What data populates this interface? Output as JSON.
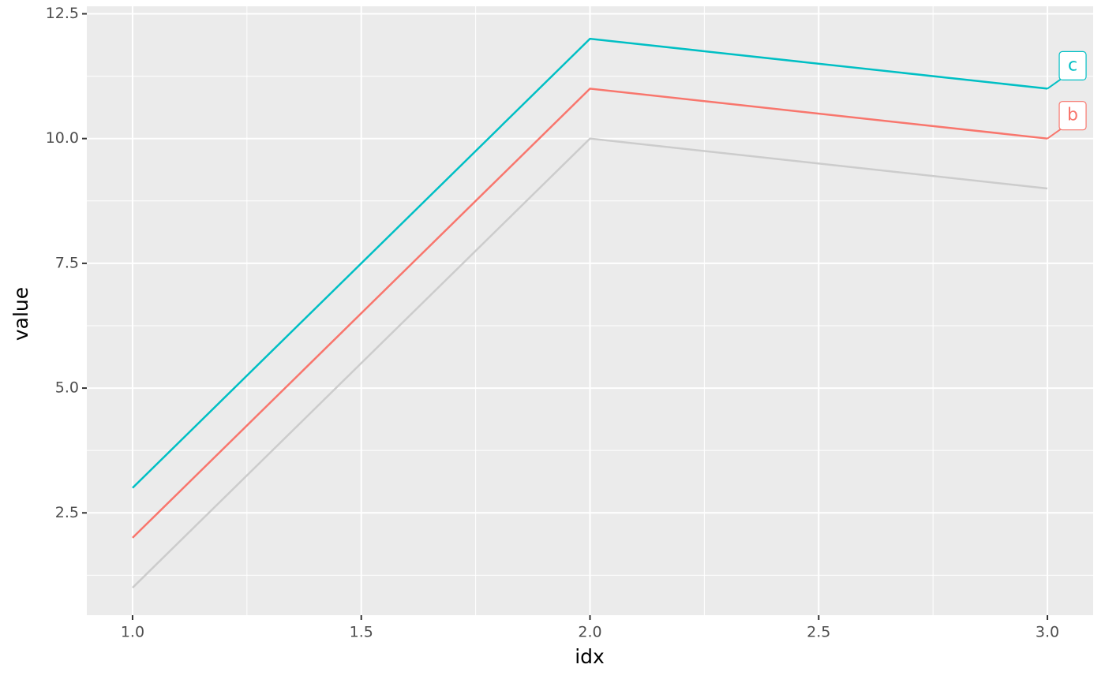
{
  "chart_data": {
    "type": "line",
    "x_label": "idx",
    "y_label": "value",
    "x": [
      1,
      2,
      3
    ],
    "series": [
      {
        "color": "#cccccc",
        "values": [
          1,
          10,
          9
        ]
      },
      {
        "name": "b",
        "color": "#F8766D",
        "values": [
          2,
          11,
          10
        ]
      },
      {
        "name": "c",
        "color": "#00BFC4",
        "values": [
          3,
          12,
          11
        ]
      }
    ],
    "xlim": [
      0.9,
      3.1
    ],
    "ylim": [
      0.45,
      12.65
    ],
    "xticks": [
      {
        "value": 1,
        "label": "1.0"
      },
      1.5,
      {
        "value": 2,
        "label": "2.0"
      },
      2.5,
      {
        "value": 3,
        "label": "3.0"
      }
    ],
    "yticks": [
      2.5,
      {
        "value": 5,
        "label": "5.0"
      },
      7.5,
      {
        "value": 10,
        "label": "10.0"
      },
      12.5
    ],
    "grid": true,
    "panel_color": "#EBEBEB"
  }
}
